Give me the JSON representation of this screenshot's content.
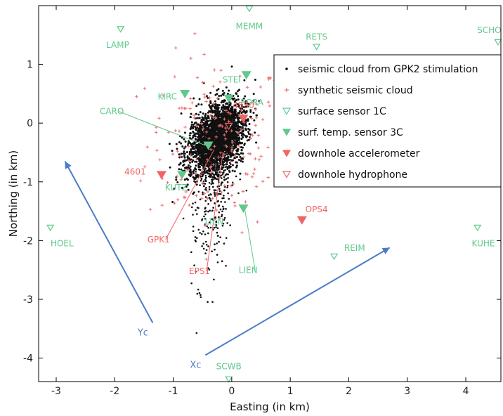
{
  "chart_data": {
    "type": "scatter",
    "xlabel": "Easting (in km)",
    "ylabel": "Northing (in km)",
    "xlim": [
      -3.3,
      4.6
    ],
    "ylim": [
      -4.4,
      2.0
    ],
    "xticks": [
      -3,
      -2,
      -1,
      0,
      1,
      2,
      3,
      4
    ],
    "yticks": [
      1,
      0,
      -1,
      -2,
      -3,
      -4
    ],
    "grid": false,
    "legend_position": "upper-right",
    "colors": {
      "surface": "#5fc98c",
      "downhole": "#f06464",
      "cloud": "#111111",
      "synthetic": "#f07070",
      "arrow": "#4a7cc8"
    },
    "legend": [
      {
        "label": "seismic cloud from GPK2 stimulation",
        "marker": "dot",
        "color": "#111111"
      },
      {
        "label": "synthetic seismic cloud",
        "marker": "plus",
        "color": "#f07070"
      },
      {
        "label": "surface sensor 1C",
        "marker": "triangle-open",
        "color": "#5fc98c"
      },
      {
        "label": "surf. temp. sensor 3C",
        "marker": "triangle-filled",
        "color": "#5fc98c"
      },
      {
        "label": "downhole accelerometer",
        "marker": "triangle-filled",
        "color": "#f06464"
      },
      {
        "label": "downhole hydrophone",
        "marker": "triangle-open",
        "color": "#f06464"
      }
    ],
    "stations": [
      {
        "name": "MEMM",
        "x": 0.3,
        "y": 1.95,
        "kind": "surface-1c",
        "label_dx": 0.0,
        "label_dy": -0.3
      },
      {
        "name": "LAMP",
        "x": -1.9,
        "y": 1.6,
        "kind": "surface-1c",
        "label_dx": -0.05,
        "label_dy": -0.27
      },
      {
        "name": "RETS",
        "x": 1.45,
        "y": 1.3,
        "kind": "surface-1c",
        "label_dx": 0.0,
        "label_dy": 0.17
      },
      {
        "name": "SCHO",
        "x": 4.55,
        "y": 1.38,
        "kind": "surface-1c",
        "label_dx": -0.15,
        "label_dy": 0.2
      },
      {
        "name": "HOEL",
        "x": -3.1,
        "y": -1.78,
        "kind": "surface-1c",
        "label_dx": 0.2,
        "label_dy": -0.27
      },
      {
        "name": "KUHE",
        "x": 4.2,
        "y": -1.78,
        "kind": "surface-1c",
        "label_dx": 0.1,
        "label_dy": -0.27
      },
      {
        "name": "REIM",
        "x": 1.75,
        "y": -2.27,
        "kind": "surface-1c",
        "label_dx": 0.35,
        "label_dy": 0.14
      },
      {
        "name": "SCWB",
        "x": -0.05,
        "y": -4.36,
        "kind": "surface-1c",
        "label_dx": 0.0,
        "label_dy": 0.22
      },
      {
        "name": "STEI",
        "x": 0.25,
        "y": 0.82,
        "kind": "surface-3c",
        "label_dx": -0.25,
        "label_dy": -0.08
      },
      {
        "name": "KIRC",
        "x": -0.8,
        "y": 0.5,
        "kind": "surface-3c",
        "label_dx": -0.3,
        "label_dy": -0.05
      },
      {
        "name": "FORA",
        "x": -0.05,
        "y": 0.42,
        "kind": "surface-3c",
        "label_dx": 0.4,
        "label_dy": -0.07
      },
      {
        "name": "KUTZ",
        "x": -0.85,
        "y": -0.88,
        "kind": "surface-3c",
        "label_dx": -0.1,
        "label_dy": -0.22
      },
      {
        "name": "LIEN",
        "x": 0.2,
        "y": -1.45,
        "kind": "surface-3c",
        "label_dx": -0.5,
        "label_dy": -0.23
      },
      {
        "name": "4550",
        "x": 0.2,
        "y": 0.08,
        "kind": "downhole-acc",
        "label_dx": 0.0,
        "label_dy": 0.22
      },
      {
        "name": "4601",
        "x": -1.2,
        "y": -0.88,
        "kind": "downhole-acc",
        "label_dx": -0.45,
        "label_dy": 0.05
      },
      {
        "name": "OPS4",
        "x": 1.2,
        "y": -1.65,
        "kind": "downhole-acc",
        "label_dx": 0.25,
        "label_dy": 0.18
      },
      {
        "name": "",
        "x": -0.4,
        "y": -0.38,
        "kind": "surface-3c",
        "label_dx": 0.0,
        "label_dy": 0.0
      },
      {
        "name": "",
        "x": -0.05,
        "y": -0.05,
        "kind": "downhole-hyd",
        "label_dx": 0.0,
        "label_dy": 0.0
      }
    ],
    "annotations": [
      {
        "text": "CARO",
        "x": -2.05,
        "y": 0.15,
        "to_x": -0.45,
        "to_y": -0.38,
        "color": "#5fc98c"
      },
      {
        "text": "GPK1",
        "x": -1.25,
        "y": -2.03,
        "to_x": -0.3,
        "to_y": -0.45,
        "color": "#f06464"
      },
      {
        "text": "EPS1",
        "x": -0.55,
        "y": -2.57,
        "to_x": -0.15,
        "to_y": -0.5,
        "color": "#f06464"
      },
      {
        "text": "LIEN",
        "x": 0.28,
        "y": -2.55,
        "to_x": 0.22,
        "to_y": -1.45,
        "color": "#5fc98c"
      }
    ],
    "axes_arrows": [
      {
        "label": "Yc",
        "from_x": -1.35,
        "from_y": -3.4,
        "to_x": -2.85,
        "to_y": -0.65
      },
      {
        "label": "Xc",
        "from_x": -0.45,
        "from_y": -3.95,
        "to_x": 2.7,
        "to_y": -2.12
      }
    ],
    "cloud_summary": {
      "series": "seismic cloud from GPK2 stimulation",
      "center_x": -0.25,
      "center_y": -0.25,
      "spread_x": 0.28,
      "spread_y": 0.55,
      "tilt_deg": -30
    },
    "synthetic_summary": {
      "series": "synthetic seismic cloud",
      "center_x": -0.25,
      "center_y": -0.35,
      "spread_x": 0.6,
      "spread_y": 0.75
    }
  }
}
